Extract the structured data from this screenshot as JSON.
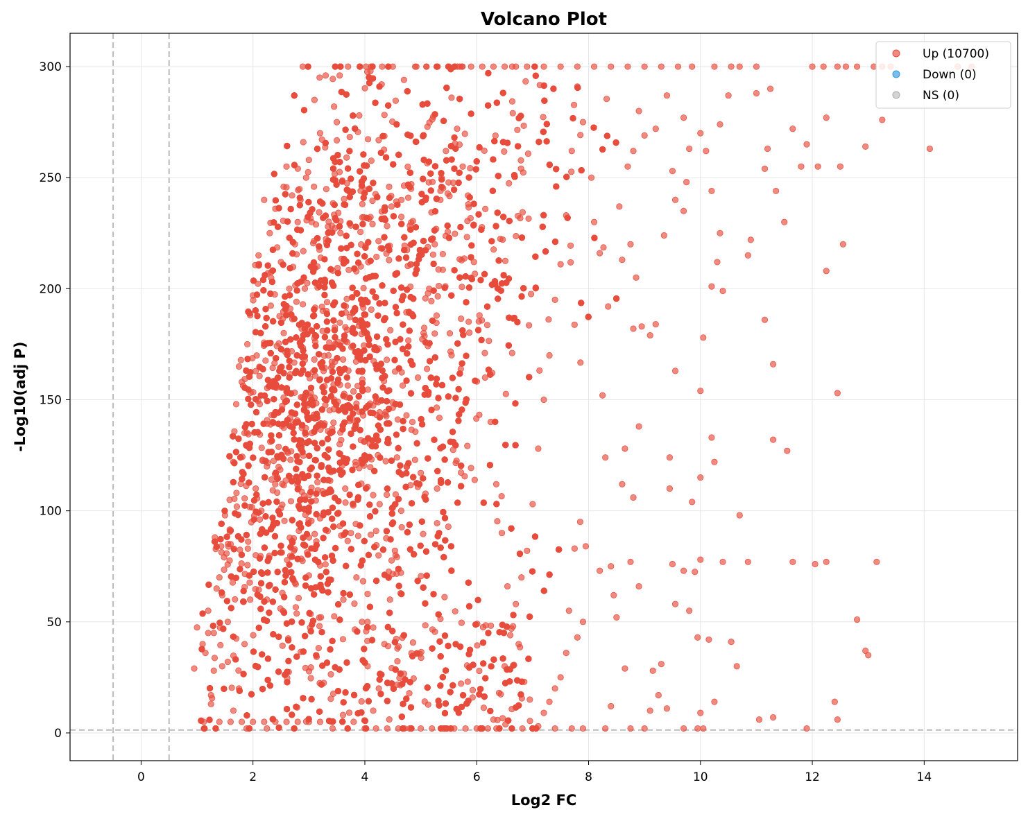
{
  "chart_data": {
    "type": "scatter",
    "title": "Volcano Plot",
    "xlabel": "Log2 FC",
    "ylabel": "-Log10(adj P)",
    "xlim": [
      -1.27,
      15.67
    ],
    "ylim": [
      -12.5,
      315
    ],
    "x_ticks": [
      0,
      2,
      4,
      6,
      8,
      10,
      12,
      14
    ],
    "y_ticks": [
      0,
      50,
      100,
      150,
      200,
      250,
      300
    ],
    "grid": true,
    "legend_position": "top-right",
    "thresholds": {
      "fold_change_lines": [
        -0.5,
        0.5
      ],
      "pvalue_line": 1.3,
      "style": "dashed",
      "color": "#bbbbbb"
    },
    "point_alpha": 0.65,
    "series": [
      {
        "name": "Up (10700)",
        "color": "#e74c3c",
        "count": 10700,
        "points": [
          [
            0.95,
            29
          ],
          [
            1.0,
            47.5
          ],
          [
            1.12,
            5
          ],
          [
            1.1,
            40
          ],
          [
            1.15,
            36
          ],
          [
            1.2,
            55
          ],
          [
            1.25,
            13
          ],
          [
            1.3,
            45
          ],
          [
            1.3,
            28
          ],
          [
            1.4,
            70
          ],
          [
            1.5,
            98
          ],
          [
            1.45,
            62
          ],
          [
            1.55,
            32
          ],
          [
            1.6,
            85
          ],
          [
            1.65,
            122
          ],
          [
            1.7,
            148
          ],
          [
            1.75,
            165
          ],
          [
            1.8,
            158
          ],
          [
            1.85,
            135
          ],
          [
            1.9,
            175
          ],
          [
            1.95,
            188
          ],
          [
            2.0,
            197
          ],
          [
            2.05,
            110
          ],
          [
            2.1,
            215
          ],
          [
            2.2,
            240
          ],
          [
            2.25,
            60
          ],
          [
            2.3,
            225
          ],
          [
            2.4,
            236
          ],
          [
            2.5,
            212
          ],
          [
            2.6,
            255
          ],
          [
            2.7,
            242
          ],
          [
            2.8,
            230
          ],
          [
            2.9,
            266
          ],
          [
            3.0,
            258
          ],
          [
            3.1,
            285
          ],
          [
            3.2,
            270
          ],
          [
            3.3,
            296
          ],
          [
            3.45,
            282
          ],
          [
            3.5,
            275
          ],
          [
            3.55,
            296
          ],
          [
            3.7,
            300
          ],
          [
            3.9,
            278
          ],
          [
            4.1,
            298
          ],
          [
            4.3,
            292
          ],
          [
            4.5,
            300
          ],
          [
            4.7,
            294
          ],
          [
            4.9,
            300
          ],
          [
            5.1,
            300
          ],
          [
            5.3,
            300
          ],
          [
            5.5,
            300
          ],
          [
            5.7,
            300
          ],
          [
            5.9,
            300
          ],
          [
            6.1,
            300
          ],
          [
            6.3,
            300
          ],
          [
            6.5,
            300
          ],
          [
            6.7,
            300
          ],
          [
            6.9,
            300
          ],
          [
            7.2,
            300
          ],
          [
            7.5,
            300
          ],
          [
            7.8,
            300
          ],
          [
            8.1,
            300
          ],
          [
            8.4,
            300
          ],
          [
            8.7,
            300
          ],
          [
            9.0,
            300
          ],
          [
            9.3,
            300
          ],
          [
            9.6,
            300
          ],
          [
            9.85,
            300
          ],
          [
            10.25,
            300
          ],
          [
            10.55,
            300
          ],
          [
            10.7,
            300
          ],
          [
            11.0,
            300
          ],
          [
            12.0,
            300
          ],
          [
            12.2,
            300
          ],
          [
            12.45,
            300
          ],
          [
            12.6,
            300
          ],
          [
            12.8,
            300
          ],
          [
            13.1,
            300
          ],
          [
            13.25,
            300
          ],
          [
            13.4,
            300
          ],
          [
            14.6,
            300
          ],
          [
            14.85,
            300
          ],
          [
            14.1,
            263
          ],
          [
            13.25,
            276
          ],
          [
            12.95,
            264
          ],
          [
            12.25,
            277
          ],
          [
            11.65,
            272
          ],
          [
            11.9,
            265
          ],
          [
            11.8,
            255
          ],
          [
            12.1,
            255
          ],
          [
            12.5,
            255
          ],
          [
            11.2,
            263
          ],
          [
            11.15,
            254
          ],
          [
            11.35,
            244
          ],
          [
            11.5,
            230
          ],
          [
            11.25,
            290
          ],
          [
            11.0,
            288
          ],
          [
            10.5,
            287
          ],
          [
            10.35,
            274
          ],
          [
            10.1,
            262
          ],
          [
            10.2,
            244
          ],
          [
            10.0,
            270
          ],
          [
            9.7,
            277
          ],
          [
            9.8,
            263
          ],
          [
            9.75,
            248
          ],
          [
            10.35,
            225
          ],
          [
            10.9,
            222
          ],
          [
            10.85,
            215
          ],
          [
            10.3,
            212
          ],
          [
            10.4,
            199
          ],
          [
            10.2,
            201
          ],
          [
            12.25,
            208
          ],
          [
            12.55,
            220
          ],
          [
            11.15,
            186
          ],
          [
            11.3,
            166
          ],
          [
            10.05,
            178
          ],
          [
            12.45,
            153
          ],
          [
            10.0,
            154
          ],
          [
            11.3,
            132
          ],
          [
            11.55,
            127
          ],
          [
            10.2,
            133
          ],
          [
            10.25,
            122
          ],
          [
            10.0,
            115
          ],
          [
            10.7,
            98
          ],
          [
            9.85,
            104
          ],
          [
            9.45,
            124
          ],
          [
            10.0,
            78
          ],
          [
            10.4,
            77
          ],
          [
            10.85,
            77
          ],
          [
            11.65,
            77
          ],
          [
            12.05,
            76
          ],
          [
            12.25,
            77
          ],
          [
            13.15,
            77
          ],
          [
            9.5,
            76
          ],
          [
            9.7,
            73
          ],
          [
            9.9,
            72.5
          ],
          [
            10.55,
            41
          ],
          [
            10.65,
            30
          ],
          [
            9.95,
            43
          ],
          [
            10.15,
            42
          ],
          [
            12.8,
            51
          ],
          [
            12.95,
            37
          ],
          [
            13.0,
            35
          ],
          [
            12.4,
            14
          ],
          [
            12.45,
            6
          ],
          [
            11.05,
            6
          ],
          [
            11.3,
            7
          ],
          [
            11.9,
            2
          ],
          [
            10.0,
            9
          ],
          [
            10.25,
            14
          ],
          [
            9.95,
            2
          ],
          [
            10.05,
            2
          ],
          [
            9.7,
            2
          ],
          [
            9.4,
            11
          ],
          [
            9.25,
            17
          ],
          [
            9.1,
            10
          ],
          [
            9.15,
            28
          ],
          [
            9.3,
            31
          ],
          [
            9.55,
            58
          ],
          [
            9.8,
            55
          ],
          [
            9.45,
            110
          ],
          [
            9.55,
            163
          ],
          [
            9.1,
            179
          ],
          [
            9.2,
            184
          ],
          [
            9.35,
            224
          ],
          [
            9.55,
            240
          ],
          [
            9.7,
            235
          ],
          [
            9.5,
            253
          ],
          [
            9.0,
            269
          ],
          [
            9.2,
            272
          ],
          [
            9.4,
            287
          ],
          [
            8.9,
            280
          ],
          [
            8.8,
            262
          ],
          [
            8.7,
            255
          ],
          [
            8.55,
            237
          ],
          [
            8.6,
            213
          ],
          [
            8.75,
            220
          ],
          [
            8.85,
            205
          ],
          [
            8.95,
            183
          ],
          [
            8.8,
            182
          ],
          [
            8.9,
            138
          ],
          [
            8.65,
            128
          ],
          [
            8.6,
            112
          ],
          [
            8.8,
            106
          ],
          [
            8.75,
            77
          ],
          [
            8.9,
            66
          ],
          [
            8.65,
            29
          ],
          [
            8.4,
            12
          ],
          [
            8.3,
            2
          ],
          [
            8.75,
            2
          ],
          [
            9.0,
            2
          ],
          [
            8.45,
            62
          ],
          [
            8.4,
            75
          ],
          [
            8.5,
            52
          ],
          [
            8.2,
            73
          ],
          [
            8.3,
            124
          ],
          [
            8.25,
            152
          ],
          [
            8.35,
            192
          ],
          [
            8.2,
            216
          ],
          [
            8.1,
            230
          ],
          [
            8.05,
            250
          ],
          [
            7.9,
            275
          ],
          [
            7.8,
            291
          ],
          [
            7.7,
            262
          ],
          [
            7.6,
            233
          ],
          [
            7.5,
            211
          ],
          [
            7.4,
            195
          ],
          [
            7.3,
            170
          ],
          [
            7.2,
            150
          ],
          [
            7.1,
            128
          ],
          [
            7.0,
            103
          ],
          [
            6.9,
            82
          ],
          [
            6.8,
            70
          ],
          [
            6.7,
            58
          ],
          [
            6.6,
            44
          ],
          [
            6.5,
            30
          ],
          [
            6.4,
            18
          ],
          [
            6.3,
            6
          ],
          [
            6.2,
            2
          ],
          [
            6.0,
            2
          ],
          [
            5.8,
            2
          ],
          [
            5.6,
            2
          ],
          [
            5.4,
            2
          ],
          [
            5.2,
            2
          ],
          [
            5.0,
            2
          ],
          [
            4.8,
            2
          ],
          [
            4.6,
            2
          ],
          [
            4.4,
            2
          ],
          [
            4.2,
            2
          ],
          [
            4.0,
            2
          ],
          [
            3.8,
            5
          ],
          [
            3.6,
            5
          ],
          [
            3.4,
            5
          ],
          [
            3.2,
            5
          ],
          [
            3.0,
            5
          ],
          [
            2.8,
            5
          ],
          [
            2.6,
            5
          ],
          [
            2.4,
            5
          ],
          [
            2.2,
            5
          ],
          [
            2.0,
            5
          ],
          [
            1.8,
            5
          ],
          [
            1.6,
            5
          ],
          [
            1.4,
            5
          ],
          [
            7.0,
            2
          ],
          [
            7.4,
            2
          ],
          [
            7.7,
            2
          ],
          [
            7.9,
            2
          ],
          [
            7.75,
            83
          ],
          [
            7.85,
            95
          ],
          [
            7.95,
            84
          ],
          [
            7.8,
            43
          ],
          [
            7.9,
            50
          ],
          [
            7.65,
            55
          ],
          [
            7.6,
            36
          ],
          [
            7.5,
            25
          ],
          [
            7.4,
            20
          ],
          [
            7.3,
            14
          ],
          [
            7.2,
            9
          ],
          [
            7.1,
            3
          ],
          [
            6.95,
            15
          ],
          [
            6.85,
            23
          ],
          [
            6.75,
            40
          ],
          [
            6.65,
            48
          ],
          [
            6.55,
            66
          ],
          [
            6.45,
            90
          ],
          [
            6.35,
            112
          ],
          [
            6.25,
            140
          ],
          [
            6.15,
            160
          ],
          [
            6.05,
            188
          ],
          [
            5.95,
            212
          ],
          [
            5.85,
            238
          ],
          [
            5.75,
            255
          ],
          [
            5.65,
            272
          ],
          [
            5.55,
            286
          ],
          [
            5.45,
            262
          ],
          [
            5.35,
            240
          ],
          [
            5.25,
            220
          ],
          [
            5.15,
            200
          ],
          [
            5.05,
            180
          ],
          [
            4.95,
            160
          ],
          [
            4.85,
            140
          ],
          [
            4.75,
            120
          ],
          [
            4.65,
            100
          ],
          [
            4.55,
            80
          ],
          [
            4.45,
            60
          ],
          [
            4.35,
            40
          ],
          [
            4.25,
            20
          ],
          [
            4.15,
            10
          ],
          [
            4.05,
            30
          ],
          [
            3.95,
            50
          ],
          [
            3.85,
            70
          ],
          [
            3.75,
            90
          ],
          [
            3.65,
            110
          ],
          [
            3.55,
            130
          ],
          [
            3.45,
            150
          ],
          [
            3.35,
            170
          ],
          [
            3.25,
            190
          ],
          [
            3.15,
            210
          ],
          [
            3.05,
            230
          ],
          [
            2.95,
            250
          ],
          [
            2.85,
            240
          ],
          [
            2.75,
            220
          ],
          [
            2.65,
            200
          ],
          [
            2.55,
            180
          ],
          [
            2.45,
            160
          ],
          [
            2.35,
            140
          ],
          [
            2.25,
            120
          ],
          [
            2.15,
            100
          ],
          [
            2.05,
            80
          ],
          [
            1.95,
            60
          ],
          [
            1.85,
            40
          ],
          [
            1.75,
            20
          ],
          [
            1.65,
            10
          ],
          [
            1.55,
            50
          ],
          [
            1.45,
            30
          ],
          [
            1.35,
            65
          ],
          [
            1.25,
            17
          ],
          [
            1.2,
            45
          ]
        ]
      },
      {
        "name": "Down (0)",
        "color": "#3498db",
        "count": 0,
        "points": []
      },
      {
        "name": "NS (0)",
        "color": "#aaaaaa",
        "count": 0,
        "points": []
      }
    ]
  }
}
